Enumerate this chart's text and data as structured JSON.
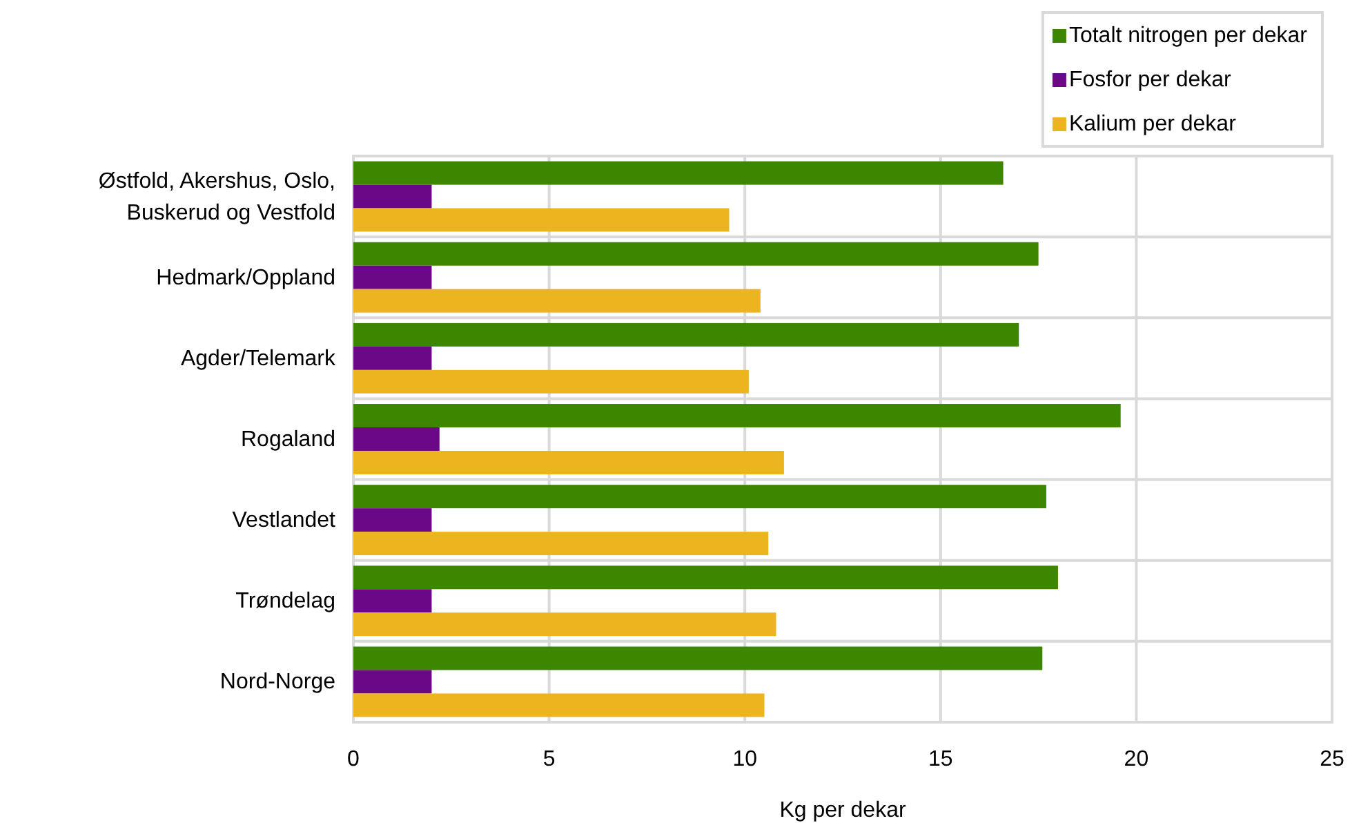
{
  "chart_data": {
    "type": "bar",
    "orientation": "horizontal",
    "categories": [
      "Østfold, Akershus, Oslo, Buskerud og Vestfold",
      "Hedmark/Oppland",
      "Agder/Telemark",
      "Rogaland",
      "Vestlandet",
      "Trøndelag",
      "Nord-Norge"
    ],
    "series": [
      {
        "name": "Totalt nitrogen per dekar",
        "color": "#3d8600",
        "values": [
          16.6,
          17.5,
          17.0,
          19.6,
          17.7,
          18.0,
          17.6
        ]
      },
      {
        "name": "Fosfor per dekar",
        "color": "#6b0887",
        "values": [
          2.0,
          2.0,
          2.0,
          2.2,
          2.0,
          2.0,
          2.0
        ]
      },
      {
        "name": "Kalium per dekar",
        "color": "#ecb41f",
        "values": [
          9.6,
          10.4,
          10.1,
          11.0,
          10.6,
          10.8,
          10.5
        ]
      }
    ],
    "xlabel": "Kg per dekar",
    "xlim": [
      0,
      25
    ],
    "xticks": [
      0,
      5,
      10,
      15,
      20,
      25
    ],
    "grid": true,
    "legend": "top right"
  }
}
